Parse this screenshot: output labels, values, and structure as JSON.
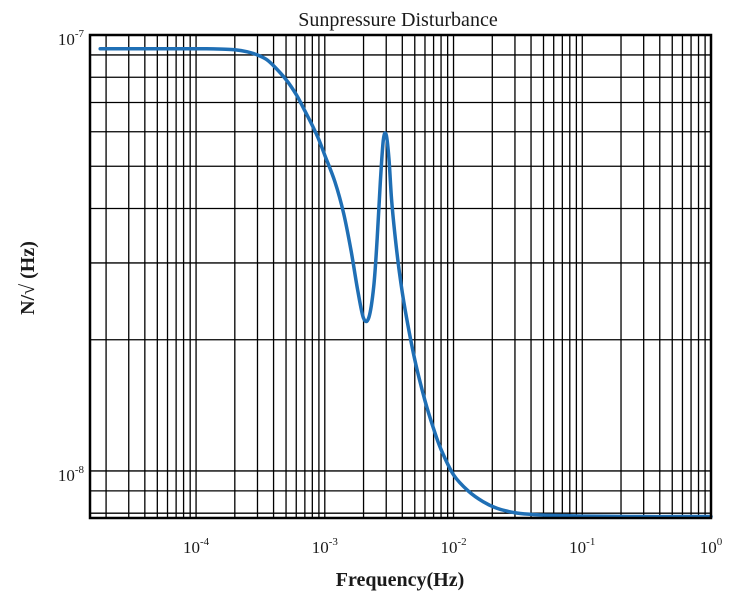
{
  "chart_data": {
    "type": "line",
    "title": "Sunpressure Disturbance",
    "xlabel": "Frequency(Hz)",
    "ylabel": "N/√ (Hz)",
    "x_scale": "log",
    "y_scale": "log",
    "xlim": [
      1.5e-05,
      1
    ],
    "ylim": [
      7.8e-09,
      1e-07
    ],
    "grid": true,
    "line_color": "#1f6fb5",
    "x_ticks": [
      {
        "base": "10",
        "exp": "-4",
        "value": 0.0001
      },
      {
        "base": "10",
        "exp": "-3",
        "value": 0.001
      },
      {
        "base": "10",
        "exp": "-2",
        "value": 0.01
      },
      {
        "base": "10",
        "exp": "-1",
        "value": 0.1
      },
      {
        "base": "10",
        "exp": "0",
        "value": 1
      }
    ],
    "y_ticks": [
      {
        "base": "10",
        "exp": "-8",
        "value": 1e-08
      },
      {
        "base": "10",
        "exp": "-7",
        "value": 1e-07
      }
    ],
    "series": [
      {
        "x": [
          1.8e-05,
          3e-05,
          5e-05,
          8e-05,
          0.00012,
          0.00016,
          0.0002,
          0.00025,
          0.0003,
          0.00035,
          0.0004,
          0.0005,
          0.0006,
          0.0007,
          0.0008,
          0.0009,
          0.001,
          0.0012,
          0.0014,
          0.0016,
          0.0018,
          0.002,
          0.0022,
          0.0024,
          0.00255,
          0.0027,
          0.00285,
          0.003,
          0.00315,
          0.0033,
          0.0035,
          0.0038,
          0.0042,
          0.005,
          0.006,
          0.007,
          0.008,
          0.01,
          0.013,
          0.017,
          0.022,
          0.03,
          0.04,
          0.05,
          0.07,
          0.1,
          0.15,
          0.3,
          0.6,
          1.0
        ],
        "y": [
          9.3e-08,
          9.3e-08,
          9.3e-08,
          9.3e-08,
          9.3e-08,
          9.28e-08,
          9.25e-08,
          9.15e-08,
          9e-08,
          8.8e-08,
          8.5e-08,
          7.9e-08,
          7.3e-08,
          6.7e-08,
          6.2e-08,
          5.75e-08,
          5.3e-08,
          4.6e-08,
          3.9e-08,
          3.2e-08,
          2.6e-08,
          2.24e-08,
          2.25e-08,
          2.65e-08,
          3.4e-08,
          4.6e-08,
          5.75e-08,
          5.9e-08,
          5.2e-08,
          4.2e-08,
          3.5e-08,
          2.85e-08,
          2.35e-08,
          1.8e-08,
          1.45e-08,
          1.25e-08,
          1.12e-08,
          9.8e-09,
          9e-09,
          8.5e-09,
          8.2e-09,
          8.02e-09,
          7.95e-09,
          7.92e-09,
          7.9e-09,
          7.88e-09,
          7.87e-09,
          7.86e-09,
          7.86e-09,
          7.86e-09
        ]
      }
    ]
  }
}
